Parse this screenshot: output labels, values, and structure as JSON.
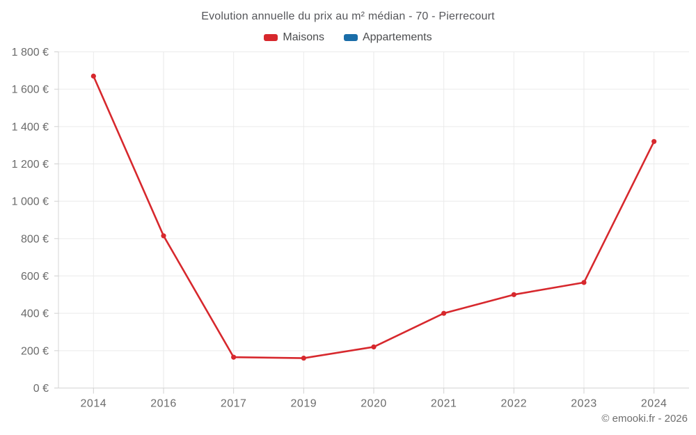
{
  "footer": {
    "copyright": "© emooki.fr - 2026"
  },
  "colors": {
    "maisons": "#d7282d",
    "appartements": "#1a6da8",
    "gridline": "#eaeaea",
    "axis": "#d4d4d4",
    "tick": "#d0d0d0",
    "tick_label": "#6b6b6b",
    "title_text": "#55565a"
  },
  "chart_data": {
    "type": "line",
    "title": "Evolution annuelle du prix au m² médian - 70 - Pierrecourt",
    "categories": [
      "2014",
      "2016",
      "2017",
      "2019",
      "2020",
      "2021",
      "2022",
      "2023",
      "2024"
    ],
    "series": [
      {
        "name": "Maisons",
        "color": "#d7282d",
        "values": [
          1670,
          815,
          165,
          160,
          220,
          400,
          500,
          565,
          1320
        ]
      },
      {
        "name": "Appartements",
        "color": "#1a6da8",
        "values": []
      }
    ],
    "xlabel": "",
    "ylabel": "",
    "ylim": [
      0,
      1800
    ],
    "ytick_step": 200,
    "y_tick_labels": [
      "0 €",
      "200 €",
      "400 €",
      "600 €",
      "800 €",
      "1 000 €",
      "1 200 €",
      "1 400 €",
      "1 600 €",
      "1 800 €"
    ],
    "grid": true,
    "legend_position": "top",
    "currency": "€"
  }
}
